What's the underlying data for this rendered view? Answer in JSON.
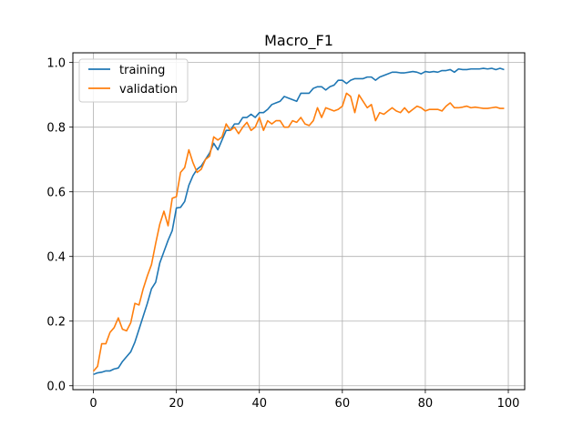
{
  "chart_data": {
    "type": "line",
    "title": "Macro_F1",
    "xlabel": "",
    "ylabel": "",
    "xlim": [
      -4.95,
      103.95
    ],
    "ylim": [
      -0.012,
      1.03
    ],
    "xticks": [
      0,
      20,
      40,
      60,
      80,
      100
    ],
    "yticks": [
      0.0,
      0.2,
      0.4,
      0.6,
      0.8,
      1.0
    ],
    "xtick_labels": [
      "0",
      "20",
      "40",
      "60",
      "80",
      "100"
    ],
    "ytick_labels": [
      "0.0",
      "0.2",
      "0.4",
      "0.6",
      "0.8",
      "1.0"
    ],
    "grid": true,
    "legend_position": "top-left",
    "x": [
      0,
      1,
      2,
      3,
      4,
      5,
      6,
      7,
      8,
      9,
      10,
      11,
      12,
      13,
      14,
      15,
      16,
      17,
      18,
      19,
      20,
      21,
      22,
      23,
      24,
      25,
      26,
      27,
      28,
      29,
      30,
      31,
      32,
      33,
      34,
      35,
      36,
      37,
      38,
      39,
      40,
      41,
      42,
      43,
      44,
      45,
      46,
      47,
      48,
      49,
      50,
      51,
      52,
      53,
      54,
      55,
      56,
      57,
      58,
      59,
      60,
      61,
      62,
      63,
      64,
      65,
      66,
      67,
      68,
      69,
      70,
      71,
      72,
      73,
      74,
      75,
      76,
      77,
      78,
      79,
      80,
      81,
      82,
      83,
      84,
      85,
      86,
      87,
      88,
      89,
      90,
      91,
      92,
      93,
      94,
      95,
      96,
      97,
      98,
      99
    ],
    "series": [
      {
        "name": "training",
        "color": "#1f77b4",
        "values": [
          0.035,
          0.04,
          0.042,
          0.046,
          0.046,
          0.052,
          0.055,
          0.075,
          0.09,
          0.105,
          0.135,
          0.175,
          0.215,
          0.255,
          0.3,
          0.32,
          0.38,
          0.415,
          0.45,
          0.48,
          0.55,
          0.552,
          0.57,
          0.62,
          0.65,
          0.67,
          0.68,
          0.7,
          0.72,
          0.75,
          0.73,
          0.76,
          0.79,
          0.79,
          0.81,
          0.81,
          0.83,
          0.83,
          0.84,
          0.83,
          0.845,
          0.845,
          0.855,
          0.87,
          0.875,
          0.88,
          0.895,
          0.89,
          0.885,
          0.88,
          0.905,
          0.905,
          0.905,
          0.92,
          0.925,
          0.925,
          0.915,
          0.925,
          0.93,
          0.945,
          0.945,
          0.935,
          0.945,
          0.95,
          0.95,
          0.95,
          0.955,
          0.955,
          0.945,
          0.955,
          0.96,
          0.965,
          0.97,
          0.97,
          0.968,
          0.968,
          0.97,
          0.972,
          0.97,
          0.965,
          0.972,
          0.97,
          0.972,
          0.97,
          0.975,
          0.975,
          0.978,
          0.97,
          0.98,
          0.978,
          0.978,
          0.98,
          0.98,
          0.98,
          0.982,
          0.98,
          0.982,
          0.978,
          0.982,
          0.978
        ]
      },
      {
        "name": "validation",
        "color": "#ff7f0e",
        "values": [
          0.045,
          0.06,
          0.13,
          0.13,
          0.165,
          0.18,
          0.21,
          0.175,
          0.17,
          0.195,
          0.255,
          0.25,
          0.3,
          0.34,
          0.375,
          0.44,
          0.5,
          0.54,
          0.495,
          0.58,
          0.585,
          0.66,
          0.675,
          0.73,
          0.69,
          0.66,
          0.67,
          0.7,
          0.71,
          0.77,
          0.76,
          0.77,
          0.81,
          0.79,
          0.8,
          0.78,
          0.8,
          0.815,
          0.79,
          0.8,
          0.83,
          0.79,
          0.82,
          0.81,
          0.82,
          0.82,
          0.8,
          0.8,
          0.82,
          0.815,
          0.83,
          0.81,
          0.805,
          0.82,
          0.86,
          0.83,
          0.86,
          0.855,
          0.85,
          0.855,
          0.865,
          0.905,
          0.895,
          0.845,
          0.9,
          0.88,
          0.86,
          0.87,
          0.82,
          0.845,
          0.84,
          0.85,
          0.86,
          0.85,
          0.845,
          0.86,
          0.845,
          0.855,
          0.865,
          0.86,
          0.85,
          0.855,
          0.855,
          0.855,
          0.85,
          0.865,
          0.875,
          0.86,
          0.86,
          0.862,
          0.865,
          0.86,
          0.862,
          0.86,
          0.858,
          0.858,
          0.86,
          0.862,
          0.858,
          0.858
        ]
      }
    ]
  }
}
